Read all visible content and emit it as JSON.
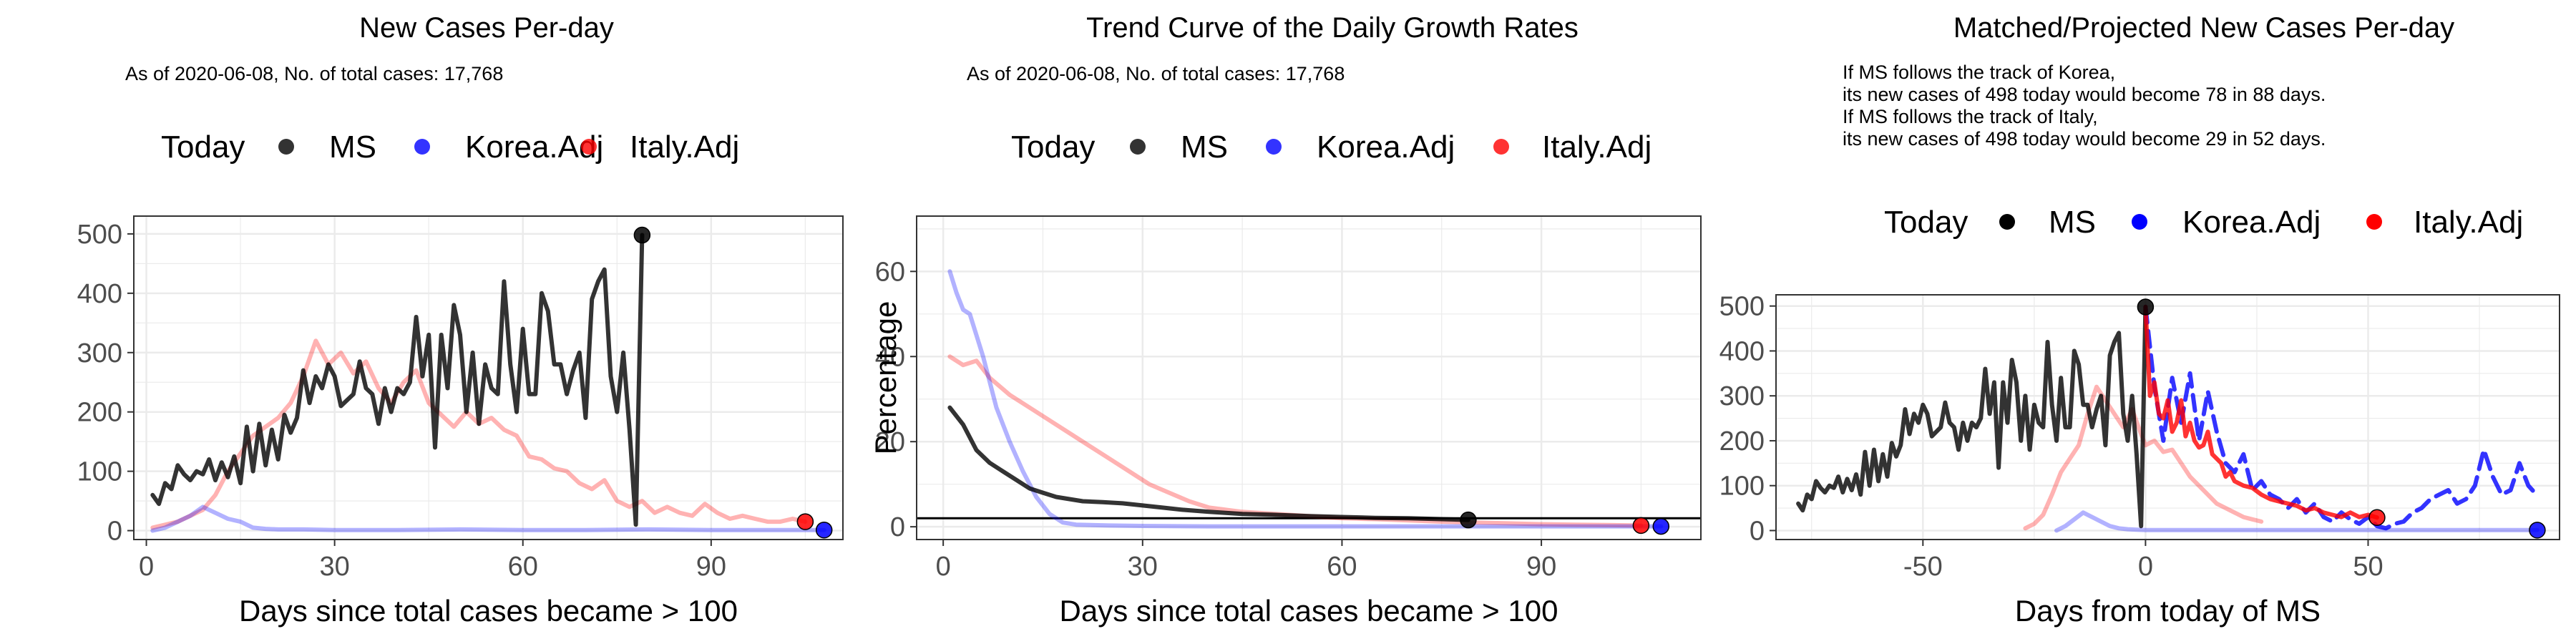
{
  "chart_data": [
    {
      "type": "line",
      "title": "New Cases Per-day",
      "subtitle": [
        "As of 2020-06-08, No. of total cases: 17,768"
      ],
      "xlabel": "Days since total cases became > 100",
      "ylabel": "",
      "xlim": [
        -2,
        111
      ],
      "ylim": [
        -15,
        530
      ],
      "xticks": [
        0,
        30,
        60,
        90
      ],
      "yticks": [
        0,
        100,
        200,
        300,
        400,
        500
      ],
      "legend": {
        "title": "Today",
        "position": "top",
        "entries": [
          "MS",
          "Korea.Adj",
          "Italy.Adj"
        ]
      },
      "series": [
        {
          "name": "Italy.Adj",
          "color": "#ff0000",
          "opacity": 0.3,
          "x": [
            1,
            3,
            5,
            7,
            9,
            11,
            13,
            15,
            17,
            19,
            21,
            23,
            25,
            27,
            29,
            31,
            33,
            35,
            37,
            39,
            41,
            43,
            45,
            47,
            49,
            51,
            53,
            55,
            57,
            59,
            61,
            63,
            65,
            67,
            69,
            71,
            73,
            75,
            77,
            79,
            81,
            83,
            85,
            87,
            89,
            91,
            93,
            95,
            97,
            99,
            101,
            103,
            105
          ],
          "y": [
            5,
            10,
            15,
            25,
            35,
            60,
            100,
            130,
            160,
            175,
            190,
            215,
            260,
            320,
            280,
            300,
            265,
            285,
            240,
            215,
            250,
            270,
            215,
            195,
            175,
            200,
            180,
            190,
            170,
            160,
            125,
            120,
            105,
            100,
            80,
            70,
            85,
            50,
            40,
            50,
            30,
            40,
            30,
            25,
            45,
            30,
            20,
            25,
            20,
            15,
            15,
            20,
            15
          ]
        },
        {
          "name": "Korea.Adj",
          "color": "#0000ff",
          "opacity": 0.3,
          "x": [
            1,
            3,
            5,
            7,
            9,
            11,
            13,
            15,
            17,
            19,
            21,
            25,
            30,
            40,
            50,
            60,
            70,
            80,
            90,
            100,
            108
          ],
          "y": [
            0,
            5,
            15,
            25,
            40,
            30,
            20,
            15,
            5,
            3,
            2,
            2,
            1,
            1,
            2,
            1,
            1,
            2,
            1,
            1,
            1
          ]
        },
        {
          "name": "MS",
          "color": "#000000",
          "opacity": 0.8,
          "x": [
            1,
            2,
            3,
            4,
            5,
            6,
            7,
            8,
            9,
            10,
            11,
            12,
            13,
            14,
            15,
            16,
            17,
            18,
            19,
            20,
            21,
            22,
            23,
            24,
            25,
            26,
            27,
            28,
            29,
            30,
            31,
            32,
            33,
            34,
            35,
            36,
            37,
            38,
            39,
            40,
            41,
            42,
            43,
            44,
            45,
            46,
            47,
            48,
            49,
            50,
            51,
            52,
            53,
            54,
            55,
            56,
            57,
            58,
            59,
            60,
            61,
            62,
            63,
            64,
            65,
            66,
            67,
            68,
            69,
            70,
            71,
            72,
            73,
            74,
            75,
            76,
            77,
            78,
            79
          ],
          "y": [
            60,
            45,
            80,
            70,
            110,
            95,
            85,
            100,
            95,
            120,
            85,
            115,
            90,
            125,
            80,
            175,
            100,
            180,
            110,
            170,
            120,
            195,
            165,
            190,
            270,
            215,
            260,
            240,
            280,
            260,
            210,
            220,
            230,
            285,
            240,
            230,
            180,
            240,
            200,
            240,
            230,
            250,
            360,
            260,
            330,
            140,
            330,
            240,
            380,
            330,
            200,
            300,
            180,
            280,
            240,
            230,
            420,
            280,
            200,
            340,
            230,
            230,
            400,
            370,
            280,
            280,
            230,
            270,
            300,
            190,
            390,
            420,
            440,
            260,
            200,
            300,
            170,
            10,
            498
          ]
        }
      ],
      "today_points": [
        {
          "name": "MS",
          "x": 79,
          "y": 498,
          "color": "#000000"
        },
        {
          "name": "Korea.Adj",
          "x": 108,
          "y": 1,
          "color": "#0000ff"
        },
        {
          "name": "Italy.Adj",
          "x": 105,
          "y": 15,
          "color": "#ff0000"
        }
      ]
    },
    {
      "type": "line",
      "title": "Trend Curve of the Daily Growth Rates",
      "subtitle": [
        "As of 2020-06-08, No. of total cases: 17,768"
      ],
      "xlabel": "Days since total cases became > 100",
      "ylabel": "Percentage",
      "xlim": [
        -4,
        114
      ],
      "ylim": [
        -3,
        73
      ],
      "xticks": [
        0,
        30,
        60,
        90
      ],
      "yticks": [
        0,
        20,
        40,
        60
      ],
      "hline": 2,
      "legend": {
        "title": "Today",
        "position": "top",
        "entries": [
          "MS",
          "Korea.Adj",
          "Italy.Adj"
        ]
      },
      "series": [
        {
          "name": "Italy.Adj",
          "color": "#ff0000",
          "opacity": 0.3,
          "x": [
            1,
            3,
            5,
            7,
            10,
            13,
            16,
            19,
            22,
            25,
            28,
            31,
            34,
            37,
            40,
            45,
            50,
            55,
            60,
            65,
            70,
            75,
            80,
            85,
            90,
            95,
            100,
            105
          ],
          "y": [
            40,
            38,
            39,
            35,
            31,
            28,
            25,
            22,
            19,
            16,
            13,
            10,
            8,
            6,
            4.5,
            3.5,
            3,
            2.5,
            2,
            1.8,
            1.5,
            1.2,
            1,
            0.8,
            0.6,
            0.5,
            0.4,
            0.3
          ]
        },
        {
          "name": "Korea.Adj",
          "color": "#0000ff",
          "opacity": 0.3,
          "x": [
            1,
            2,
            3,
            4,
            5,
            6,
            7,
            8,
            10,
            12,
            14,
            16,
            18,
            20,
            25,
            30,
            40,
            50,
            60,
            70,
            80,
            90,
            100,
            108
          ],
          "y": [
            60,
            55,
            51,
            50,
            45,
            40,
            34,
            28,
            20,
            13,
            7,
            3,
            1,
            0.5,
            0.3,
            0.2,
            0.1,
            0.1,
            0.1,
            0.1,
            0.1,
            0.1,
            0.1,
            0.1
          ]
        },
        {
          "name": "MS",
          "color": "#000000",
          "opacity": 0.8,
          "x": [
            1,
            3,
            5,
            7,
            9,
            11,
            13,
            15,
            17,
            19,
            21,
            24,
            27,
            30,
            33,
            36,
            40,
            45,
            50,
            55,
            60,
            65,
            70,
            75,
            79
          ],
          "y": [
            28,
            24,
            18,
            15,
            13,
            11,
            9,
            8,
            7,
            6.5,
            6,
            5.8,
            5.5,
            5,
            4.5,
            4,
            3.5,
            3,
            2.8,
            2.5,
            2.3,
            2.1,
            2,
            1.8,
            1.6
          ]
        }
      ],
      "today_points": [
        {
          "name": "MS",
          "x": 79,
          "y": 1.6,
          "color": "#000000"
        },
        {
          "name": "Korea.Adj",
          "x": 108,
          "y": 0.1,
          "color": "#0000ff"
        },
        {
          "name": "Italy.Adj",
          "x": 105,
          "y": 0.3,
          "color": "#ff0000"
        }
      ]
    },
    {
      "type": "line",
      "title": "Matched/Projected New Cases Per-day",
      "subtitle": [
        "If MS follows the track of Korea,",
        "its new cases of 498 today would become 78 in 88 days.",
        "If MS follows the track of Italy,",
        "its new cases of 498 today would become 29 in 52 days."
      ],
      "xlabel": "Days from today of MS",
      "ylabel": "",
      "xlim": [
        -83,
        93
      ],
      "ylim": [
        -20,
        525
      ],
      "xticks": [
        -50,
        0,
        50
      ],
      "yticks": [
        0,
        100,
        200,
        300,
        400,
        500
      ],
      "legend": {
        "title": "Today",
        "position": "top",
        "entries": [
          "MS",
          "Korea.Adj",
          "Italy.Adj"
        ]
      },
      "series": [
        {
          "name": "Italy.Adj",
          "color": "#ff0000",
          "opacity": 0.3,
          "x": [
            -27,
            -25,
            -23,
            -21,
            -19,
            -17,
            -15,
            -13,
            -11,
            -9,
            -7,
            -5,
            -3,
            -1,
            0,
            2,
            4,
            6,
            8,
            10,
            12,
            14,
            16,
            18,
            20,
            22,
            24,
            26
          ],
          "y": [
            5,
            15,
            35,
            80,
            130,
            160,
            190,
            260,
            320,
            290,
            260,
            230,
            270,
            215,
            190,
            200,
            175,
            180,
            150,
            120,
            100,
            80,
            60,
            50,
            40,
            30,
            25,
            20
          ]
        },
        {
          "name": "Korea.Adj",
          "color": "#0000ff",
          "opacity": 0.3,
          "x": [
            -20,
            -18,
            -16,
            -14,
            -12,
            -10,
            -8,
            -6,
            -4,
            -2,
            0,
            10,
            20,
            30,
            40,
            50,
            60,
            70,
            80,
            88
          ],
          "y": [
            0,
            10,
            25,
            40,
            30,
            20,
            10,
            5,
            3,
            2,
            1,
            1,
            1,
            1,
            1,
            1,
            1,
            1,
            1,
            1
          ]
        },
        {
          "name": "MS",
          "color": "#000000",
          "opacity": 0.8,
          "x": [
            -78,
            -77,
            -76,
            -75,
            -74,
            -73,
            -72,
            -71,
            -70,
            -69,
            -68,
            -67,
            -66,
            -65,
            -64,
            -63,
            -62,
            -61,
            -60,
            -59,
            -58,
            -57,
            -56,
            -55,
            -54,
            -53,
            -52,
            -51,
            -50,
            -49,
            -48,
            -47,
            -46,
            -45,
            -44,
            -43,
            -42,
            -41,
            -40,
            -39,
            -38,
            -37,
            -36,
            -35,
            -34,
            -33,
            -32,
            -31,
            -30,
            -29,
            -28,
            -27,
            -26,
            -25,
            -24,
            -23,
            -22,
            -21,
            -20,
            -19,
            -18,
            -17,
            -16,
            -15,
            -14,
            -13,
            -12,
            -11,
            -10,
            -9,
            -8,
            -7,
            -6,
            -5,
            -4,
            -3,
            -2,
            -1,
            0
          ],
          "y": [
            60,
            45,
            80,
            70,
            110,
            95,
            85,
            100,
            95,
            120,
            85,
            115,
            90,
            125,
            80,
            175,
            100,
            180,
            110,
            170,
            120,
            195,
            165,
            190,
            270,
            215,
            260,
            240,
            280,
            260,
            210,
            220,
            230,
            285,
            240,
            230,
            180,
            240,
            200,
            240,
            230,
            250,
            360,
            260,
            330,
            140,
            330,
            240,
            380,
            330,
            200,
            300,
            180,
            280,
            240,
            230,
            420,
            280,
            200,
            340,
            230,
            230,
            400,
            370,
            280,
            280,
            230,
            270,
            300,
            190,
            390,
            420,
            440,
            260,
            200,
            300,
            170,
            10,
            498
          ]
        },
        {
          "name": "Korea.Adj projected",
          "color": "#0000ff",
          "opacity": 0.8,
          "dash": true,
          "x": [
            0,
            2,
            4,
            6,
            8,
            10,
            12,
            14,
            16,
            18,
            20,
            22,
            24,
            26,
            28,
            30,
            32,
            34,
            36,
            38,
            40,
            42,
            44,
            46,
            48,
            50,
            52,
            54,
            56,
            58,
            60,
            62,
            64,
            66,
            68,
            70,
            72,
            74,
            76,
            78,
            80,
            82,
            84,
            86,
            88
          ],
          "y": [
            498,
            320,
            200,
            340,
            240,
            350,
            200,
            310,
            220,
            150,
            130,
            170,
            90,
            110,
            80,
            70,
            50,
            70,
            40,
            60,
            30,
            20,
            40,
            25,
            15,
            30,
            10,
            5,
            15,
            20,
            40,
            50,
            70,
            80,
            90,
            60,
            70,
            100,
            180,
            120,
            80,
            90,
            150,
            100,
            78
          ]
        },
        {
          "name": "Italy.Adj projected",
          "color": "#ff0000",
          "opacity": 0.8,
          "dash": false,
          "x": [
            0,
            1,
            2,
            3,
            4,
            5,
            6,
            7,
            8,
            9,
            10,
            11,
            12,
            13,
            14,
            15,
            16,
            17,
            18,
            19,
            20,
            22,
            24,
            26,
            28,
            30,
            32,
            34,
            36,
            38,
            40,
            42,
            44,
            46,
            48,
            50,
            52
          ],
          "y": [
            498,
            300,
            330,
            260,
            250,
            290,
            220,
            240,
            290,
            210,
            240,
            200,
            185,
            190,
            220,
            170,
            160,
            150,
            120,
            130,
            110,
            100,
            95,
            80,
            70,
            65,
            60,
            55,
            45,
            50,
            40,
            35,
            30,
            40,
            30,
            35,
            29
          ]
        }
      ],
      "today_points": [
        {
          "name": "MS",
          "x": 0,
          "y": 498,
          "color": "#000000"
        },
        {
          "name": "Korea.Adj",
          "x": 88,
          "y": 1,
          "color": "#0000ff"
        },
        {
          "name": "Italy.Adj",
          "x": 52,
          "y": 29,
          "color": "#ff0000"
        }
      ]
    }
  ]
}
